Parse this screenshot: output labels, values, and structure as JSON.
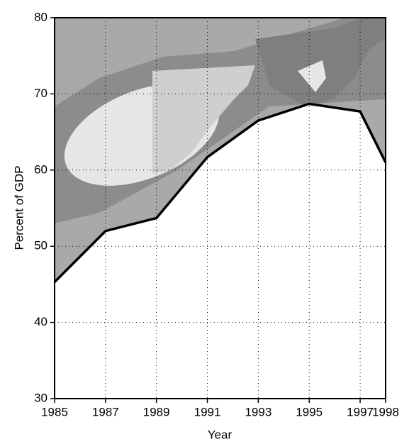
{
  "chart_data": {
    "type": "line",
    "x_label": "Year",
    "y_label": "Percent of GDP",
    "x": [
      1985,
      1987,
      1989,
      1991,
      1993,
      1995,
      1997,
      1998
    ],
    "series": [
      {
        "color": "#000000",
        "values": [
          45.3,
          52,
          53.7,
          61.7,
          66.5,
          68.7,
          67.7,
          61
        ]
      }
    ],
    "xlim": [
      1985,
      1998
    ],
    "xticks": [
      1985,
      1987,
      1989,
      1991,
      1993,
      1995,
      1997,
      1998
    ],
    "ylim": [
      30,
      80
    ],
    "yticks": [
      30,
      40,
      50,
      60,
      70,
      80
    ],
    "grid": true
  }
}
